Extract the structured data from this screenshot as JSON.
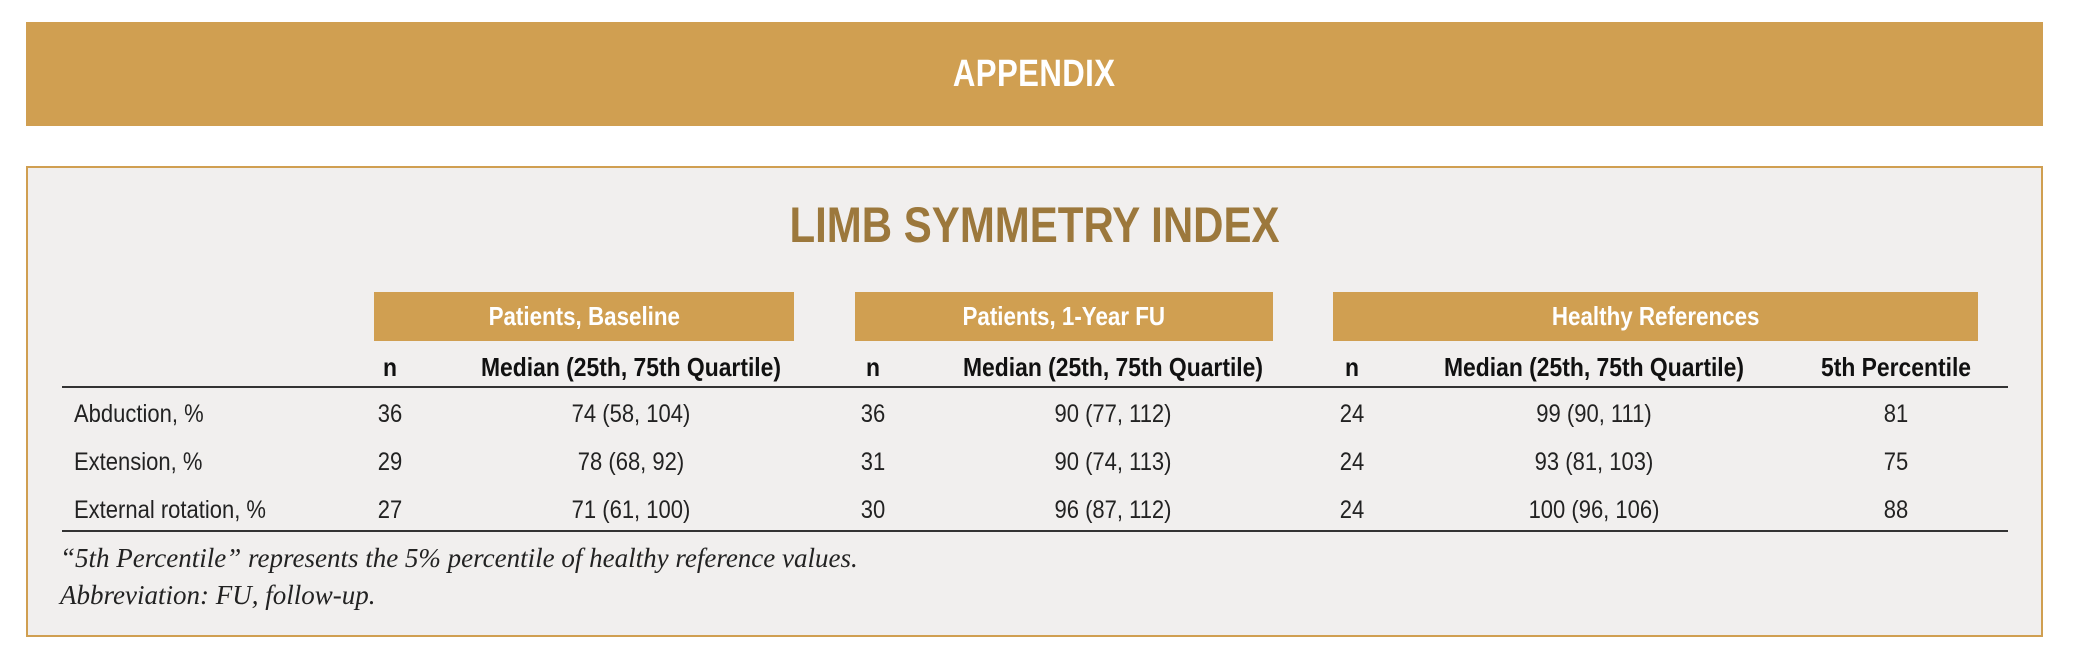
{
  "header": {
    "appendix_label": "APPENDIX"
  },
  "table": {
    "title": "LIMB SYMMETRY INDEX",
    "groups": [
      {
        "label": "Patients, Baseline"
      },
      {
        "label": "Patients, 1-Year FU"
      },
      {
        "label": "Healthy References"
      }
    ],
    "column_headers": {
      "n": "n",
      "median": "Median (25th, 75th Quartile)",
      "percentile": "5th Percentile"
    },
    "rows": [
      {
        "label": "Abduction, %",
        "baseline_n": "36",
        "baseline_median": "74 (58, 104)",
        "fu_n": "36",
        "fu_median": "90 (77, 112)",
        "healthy_n": "24",
        "healthy_median": "99 (90, 111)",
        "healthy_p5": "81"
      },
      {
        "label": "Extension, %",
        "baseline_n": "29",
        "baseline_median": "78 (68, 92)",
        "fu_n": "31",
        "fu_median": "90 (74, 113)",
        "healthy_n": "24",
        "healthy_median": "93 (81, 103)",
        "healthy_p5": "75"
      },
      {
        "label": "External rotation, %",
        "baseline_n": "27",
        "baseline_median": "71 (61, 100)",
        "fu_n": "30",
        "fu_median": "96 (87, 112)",
        "healthy_n": "24",
        "healthy_median": "100 (96, 106)",
        "healthy_p5": "88"
      }
    ],
    "footnotes": [
      "“5th Percentile” represents the 5% percentile of healthy reference values.",
      "Abbreviation: FU, follow-up."
    ]
  },
  "colors": {
    "accent": "#d09f51",
    "title_brown": "#9c783c",
    "panel_bg": "#f1efee"
  }
}
